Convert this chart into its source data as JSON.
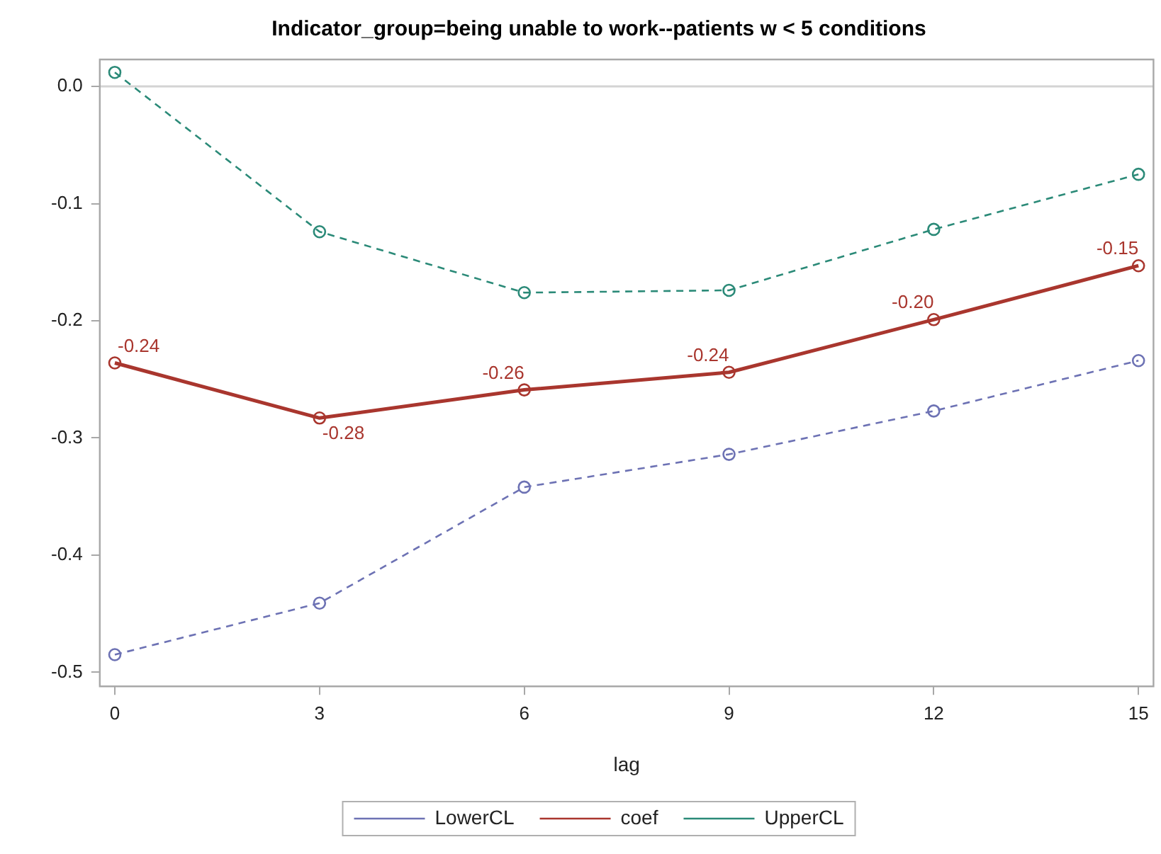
{
  "chart_data": {
    "type": "line",
    "title": "Indicator_group=being unable to work--patients w < 5 conditions",
    "xlabel": "lag",
    "x": [
      0,
      3,
      6,
      9,
      12,
      15
    ],
    "series": [
      {
        "name": "LowerCL",
        "color": "#6d72b4",
        "line_style": "dashed",
        "values": [
          -0.485,
          -0.441,
          -0.342,
          -0.314,
          -0.277,
          -0.234
        ]
      },
      {
        "name": "coef",
        "color": "#a9362e",
        "line_style": "solid",
        "values": [
          -0.236,
          -0.283,
          -0.259,
          -0.244,
          -0.199,
          -0.153
        ],
        "value_labels": [
          "-0.24",
          "-0.28",
          "-0.26",
          "-0.24",
          "-0.20",
          "-0.15"
        ]
      },
      {
        "name": "UpperCL",
        "color": "#2b8a78",
        "line_style": "dashed",
        "values": [
          0.012,
          -0.124,
          -0.176,
          -0.174,
          -0.122,
          -0.075
        ]
      }
    ],
    "xlim": [
      -0.22,
      15.22
    ],
    "xticks": [
      0,
      3,
      6,
      9,
      12,
      15
    ],
    "ylim": [
      -0.512,
      0.023
    ],
    "yticks": [
      {
        "value": 0,
        "label": "0.0"
      },
      -0.1,
      -0.2,
      -0.3,
      -0.4,
      -0.5
    ],
    "ref_lines": [
      {
        "axis": "y",
        "value": 0,
        "color": "#d4d4d4"
      }
    ],
    "marker": "circle",
    "grid": false,
    "legend": "bottom"
  }
}
